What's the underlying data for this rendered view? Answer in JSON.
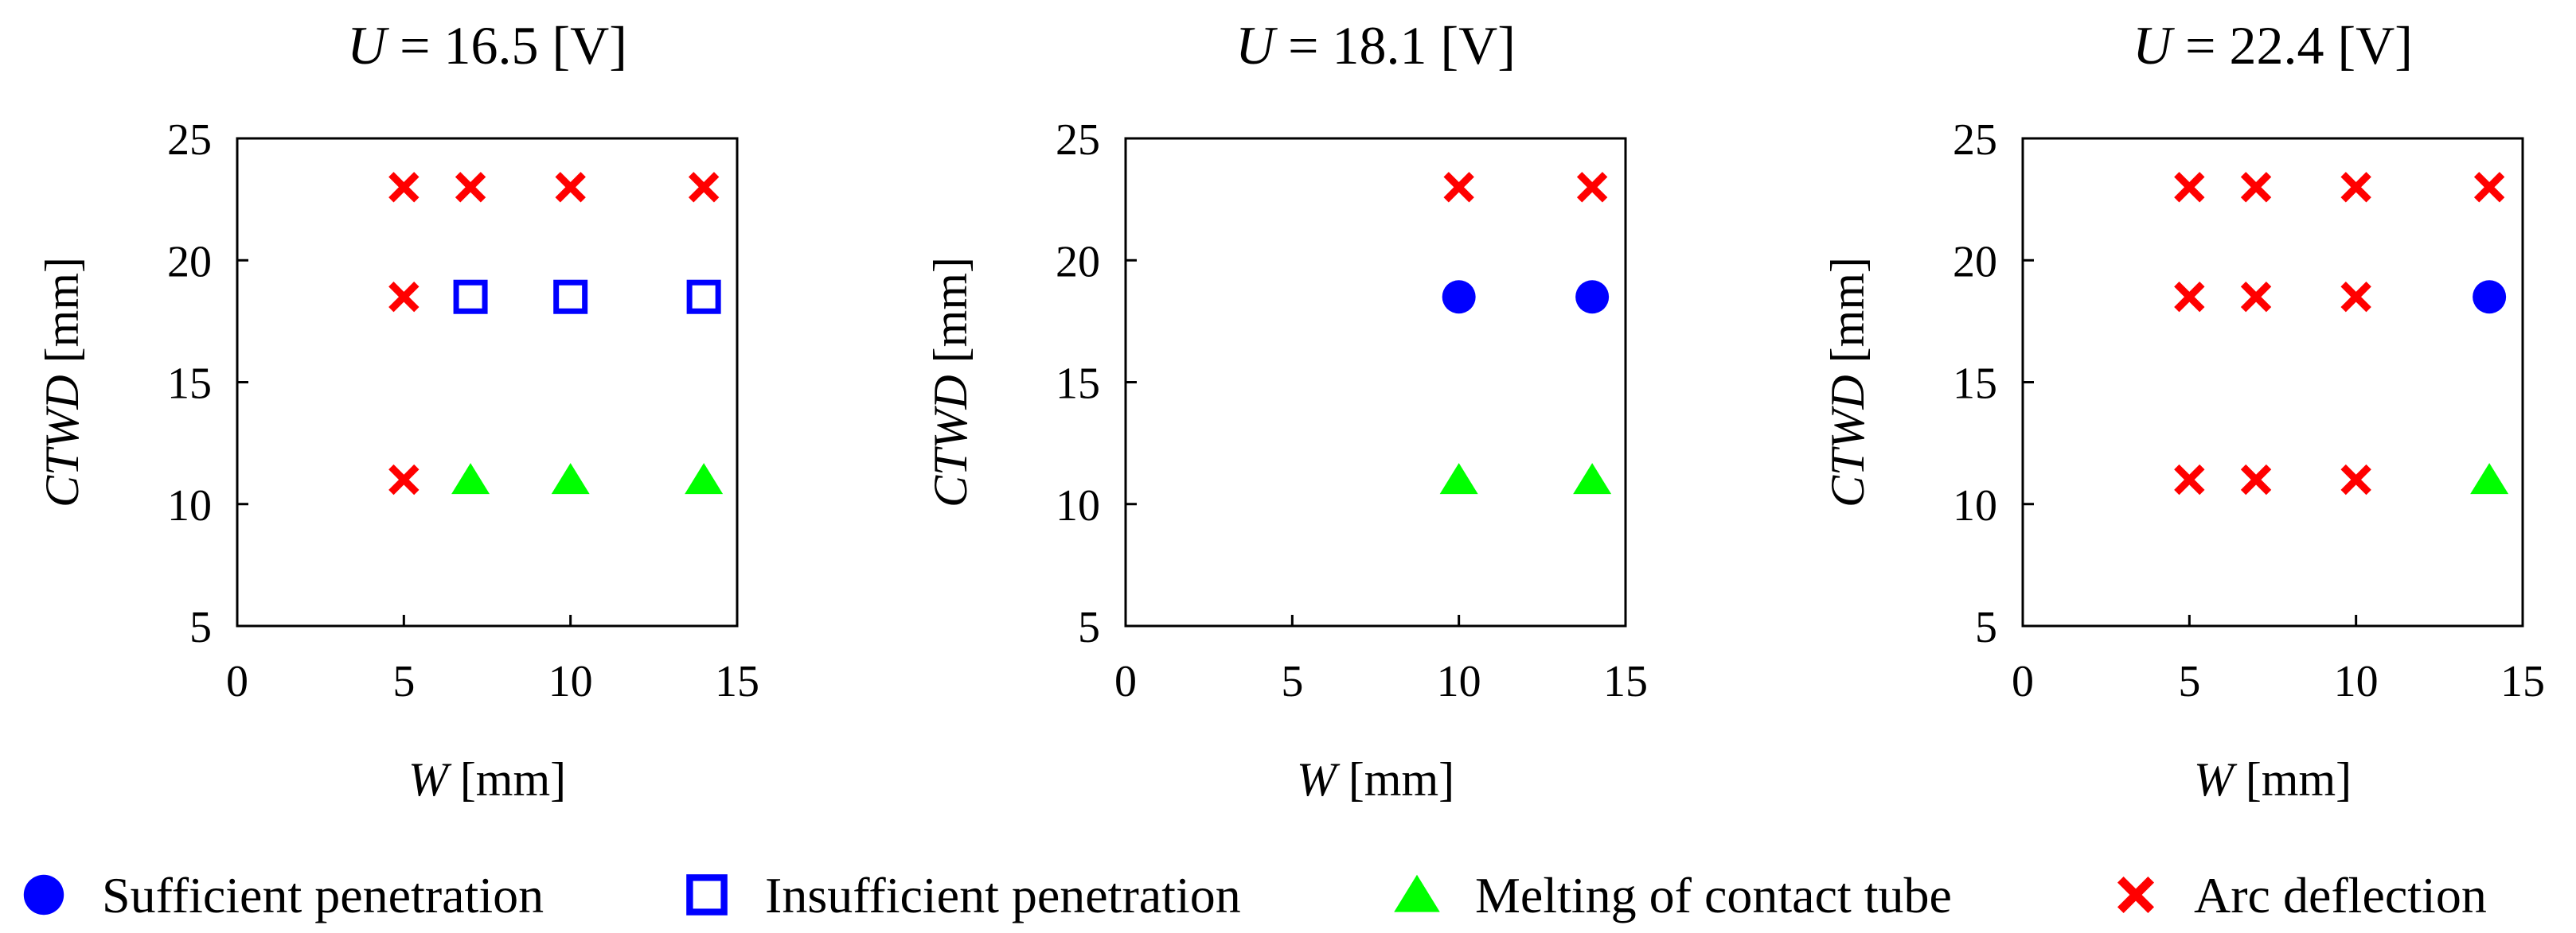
{
  "chart_data": [
    {
      "type": "scatter",
      "title": {
        "var": "U",
        "rest": " = 16.5 [V]"
      },
      "xlabel": {
        "var": "W",
        "rest": " [mm]"
      },
      "ylabel": {
        "var": "CTWD",
        "rest": " [mm]"
      },
      "xlim": [
        0,
        15
      ],
      "ylim": [
        5,
        25
      ],
      "xticks": [
        0,
        5,
        10,
        15
      ],
      "yticks": [
        5,
        10,
        15,
        20,
        25
      ],
      "grid": false,
      "series": [
        {
          "name": "Insufficient penetration",
          "marker": "open-square",
          "points": [
            [
              7,
              18.5
            ],
            [
              10,
              18.5
            ],
            [
              14,
              18.5
            ]
          ]
        },
        {
          "name": "Melting of contact tube",
          "marker": "triangle",
          "points": [
            [
              7,
              11
            ],
            [
              10,
              11
            ],
            [
              14,
              11
            ]
          ]
        },
        {
          "name": "Arc deflection",
          "marker": "x",
          "points": [
            [
              5,
              23
            ],
            [
              7,
              23
            ],
            [
              10,
              23
            ],
            [
              14,
              23
            ],
            [
              5,
              18.5
            ],
            [
              5,
              11
            ]
          ]
        }
      ]
    },
    {
      "type": "scatter",
      "title": {
        "var": "U",
        "rest": " = 18.1 [V]"
      },
      "xlabel": {
        "var": "W",
        "rest": " [mm]"
      },
      "ylabel": {
        "var": "CTWD",
        "rest": " [mm]"
      },
      "xlim": [
        0,
        15
      ],
      "ylim": [
        5,
        25
      ],
      "xticks": [
        0,
        5,
        10,
        15
      ],
      "yticks": [
        5,
        10,
        15,
        20,
        25
      ],
      "grid": false,
      "series": [
        {
          "name": "Sufficient penetration",
          "marker": "circle",
          "points": [
            [
              10,
              18.5
            ],
            [
              14,
              18.5
            ]
          ]
        },
        {
          "name": "Melting of contact tube",
          "marker": "triangle",
          "points": [
            [
              10,
              11
            ],
            [
              14,
              11
            ]
          ]
        },
        {
          "name": "Arc deflection",
          "marker": "x",
          "points": [
            [
              10,
              23
            ],
            [
              14,
              23
            ]
          ]
        }
      ]
    },
    {
      "type": "scatter",
      "title": {
        "var": "U",
        "rest": " = 22.4 [V]"
      },
      "xlabel": {
        "var": "W",
        "rest": " [mm]"
      },
      "ylabel": {
        "var": "CTWD",
        "rest": " [mm]"
      },
      "xlim": [
        0,
        15
      ],
      "ylim": [
        5,
        25
      ],
      "xticks": [
        0,
        5,
        10,
        15
      ],
      "yticks": [
        5,
        10,
        15,
        20,
        25
      ],
      "grid": false,
      "series": [
        {
          "name": "Sufficient penetration",
          "marker": "circle",
          "points": [
            [
              14,
              18.5
            ]
          ]
        },
        {
          "name": "Melting of contact tube",
          "marker": "triangle",
          "points": [
            [
              14,
              11
            ]
          ]
        },
        {
          "name": "Arc deflection",
          "marker": "x",
          "points": [
            [
              5,
              23
            ],
            [
              7,
              23
            ],
            [
              10,
              23
            ],
            [
              14,
              23
            ],
            [
              5,
              18.5
            ],
            [
              7,
              18.5
            ],
            [
              10,
              18.5
            ],
            [
              5,
              11
            ],
            [
              7,
              11
            ],
            [
              10,
              11
            ]
          ]
        }
      ]
    }
  ],
  "legend": {
    "placement": "bottom",
    "items": [
      {
        "label": "Sufficient penetration",
        "marker": "circle"
      },
      {
        "label": "Insufficient penetration",
        "marker": "open-square"
      },
      {
        "label": "Melting of contact tube",
        "marker": "triangle"
      },
      {
        "label": "Arc deflection",
        "marker": "x"
      }
    ]
  },
  "colors": {
    "circle": "#0000ff",
    "open-square": "#0000ff",
    "triangle": "#00ff00",
    "x": "#ff0000",
    "axis": "#000000"
  }
}
